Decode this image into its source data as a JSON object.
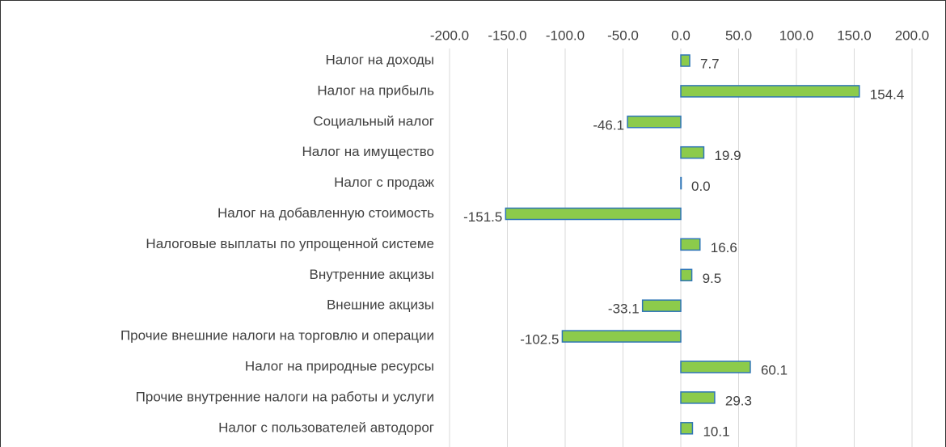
{
  "chart_data": {
    "type": "hbar",
    "categories": [
      "Налог на доходы",
      "Налог на прибыль",
      "Социальный налог",
      "Налог на имущество",
      "Налог с продаж",
      "Налог на добавленную стоимость",
      "Налоговые выплаты по упрощенной системе",
      "Внутренние акцизы",
      "Внешние акцизы",
      "Прочие внешние налоги на торговлю и операции",
      "Налог на природные ресурсы",
      "Прочие внутренние налоги на работы и услуги",
      "Налог с пользователей автодорог"
    ],
    "values": [
      7.7,
      154.4,
      -46.1,
      19.9,
      0,
      -151.5,
      16.6,
      9.5,
      -33.1,
      -102.5,
      60.1,
      29.3,
      10.1
    ],
    "value_labels": [
      "7.7",
      "154.4",
      "-46.1",
      "19.9",
      "0.0",
      "-151.5",
      "16.6",
      "9.5",
      "-33.1",
      "-102.5",
      "60.1",
      "29.3",
      "10.1"
    ],
    "color": "#8ccb4b",
    "edge_color": "#2e75b6",
    "xlim": [
      -200,
      200
    ],
    "xticks": [
      {
        "value": -200,
        "label": "-200.0"
      },
      {
        "value": -150,
        "label": "-150.0"
      },
      {
        "value": -100,
        "label": "-100.0"
      },
      {
        "value": -50,
        "label": "-50.0"
      },
      {
        "value": 0,
        "label": "0.0"
      },
      {
        "value": 50,
        "label": "50.0"
      },
      {
        "value": 100,
        "label": "100.0"
      },
      {
        "value": 150,
        "label": "150.0"
      },
      {
        "value": 200,
        "label": "200.0"
      }
    ],
    "grid": true
  }
}
